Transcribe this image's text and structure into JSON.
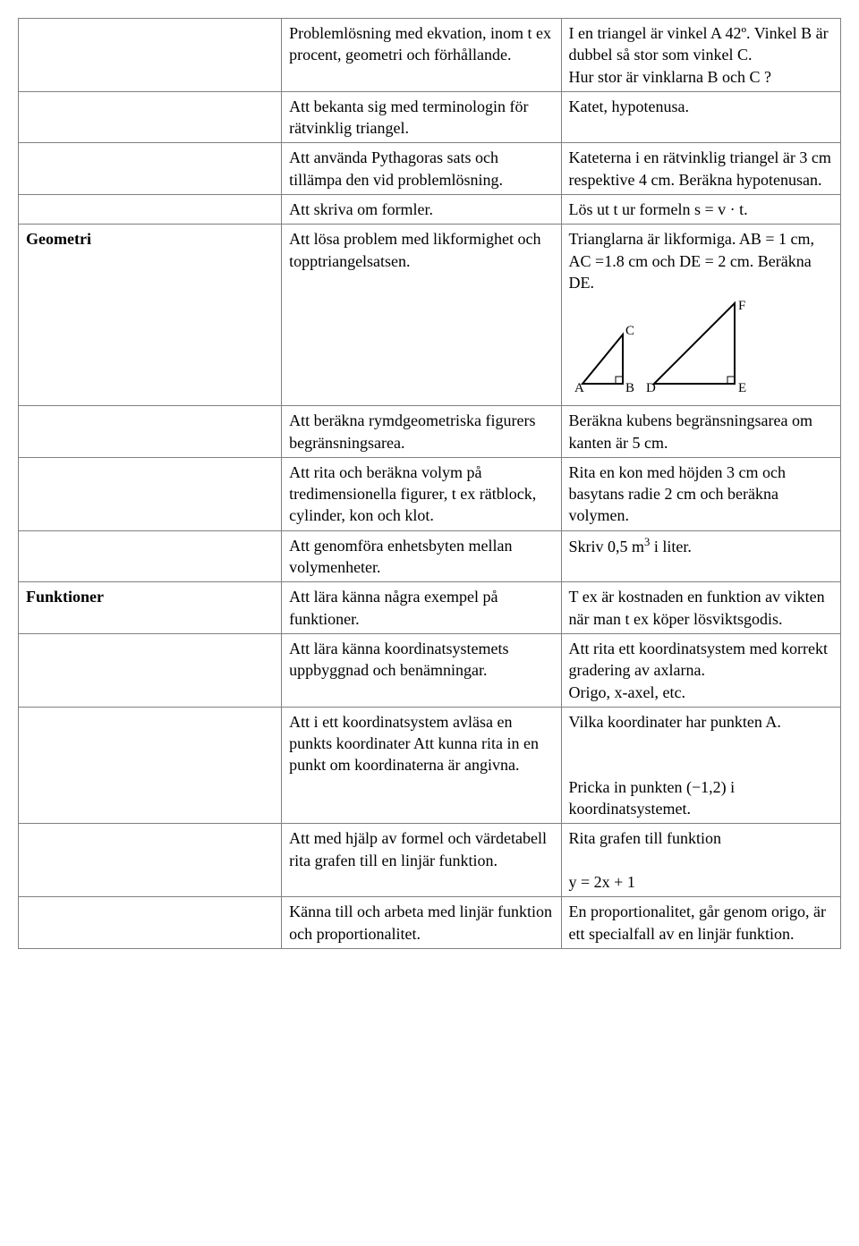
{
  "table": {
    "border_color": "#808080",
    "background_color": "#ffffff",
    "font_family": "Times New Roman",
    "font_size_pt": 13,
    "rows": [
      {
        "c1": "",
        "c2": "Problemlösning med ekvation, inom t ex procent, geometri och förhållande.",
        "c3": "I en triangel är vinkel A 42º. Vinkel B är dubbel så stor som vinkel C.\nHur stor är vinklarna B och C ?"
      },
      {
        "c1": "",
        "c2": "Att bekanta sig med terminologin för rätvinklig triangel.",
        "c3": "Katet, hypotenusa."
      },
      {
        "c1": "",
        "c2": "Att använda Pythagoras sats och tillämpa den vid problemlösning.",
        "c3": "Kateterna i en rätvinklig triangel är 3 cm respektive 4 cm. Beräkna hypotenusan."
      },
      {
        "c1": "",
        "c2": "Att skriva om formler.",
        "c3_prefix": "Lös ut t ur formeln ",
        "c3_formula": "s = v · t",
        "c3_suffix": "."
      },
      {
        "c1": "Geometri",
        "c2": "Att lösa problem med likformighet och topptriangelsatsen.",
        "c3": "Trianglarna är likformiga. AB = 1 cm, AC =1.8 cm och DE = 2 cm. Beräkna DE.",
        "has_diagram": true
      },
      {
        "c1": "",
        "c2": "Att beräkna rymdgeometriska figurers begränsningsarea.",
        "c3": "Beräkna kubens begränsningsarea om kanten är 5 cm."
      },
      {
        "c1": "",
        "c2": "Att rita och beräkna volym på tredimensionella figurer, t ex rätblock, cylinder, kon och klot.",
        "c3": "Rita en kon med höjden 3 cm och basytans radie 2 cm och beräkna volymen."
      },
      {
        "c1": "",
        "c2": "Att genomföra enhetsbyten mellan volymenheter.",
        "c3_prefix": "Skriv 0,5 m",
        "c3_sup": "3",
        "c3_suffix": " i liter."
      },
      {
        "c1": "Funktioner",
        "c2": "Att lära känna några exempel på funktioner.",
        "c3": "T ex är kostnaden en funktion av vikten när man t ex köper lösviktsgodis."
      },
      {
        "c1": "",
        "c2": "Att lära känna koordinatsystemets uppbyggnad och benämningar.",
        "c3": "Att rita ett koordinatsystem med korrekt gradering av axlarna.\nOrigo, x-axel, etc."
      },
      {
        "c1": "",
        "c2": "Att i ett koordinatsystem avläsa en punkts koordinater Att kunna rita in en punkt om koordinaterna är angivna.",
        "c3": "Vilka koordinater har punkten A.\n\nPricka in punkten (−1,2) i koordinatsystemet."
      },
      {
        "c1": "",
        "c2": "Att med hjälp av formel och värdetabell rita grafen till en linjär funktion.",
        "c3_prefix": "Rita grafen till funktion\n",
        "c3_formula": "y = 2x + 1"
      },
      {
        "c1": "",
        "c2": "Känna till och arbeta med linjär funktion och proportionalitet.",
        "c3": "En proportionalitet, går genom origo,  är ett specialfall av en linjär funktion."
      }
    ]
  },
  "diagram": {
    "type": "triangles",
    "stroke": "#000000",
    "stroke_width": 2,
    "label_font_size": 14,
    "triangle1": {
      "A": [
        15,
        95
      ],
      "B": [
        60,
        95
      ],
      "C": [
        60,
        40
      ],
      "labels": {
        "A": "A",
        "B": "B",
        "C": "C"
      }
    },
    "triangle2": {
      "D": [
        95,
        95
      ],
      "E": [
        185,
        95
      ],
      "F": [
        185,
        5
      ],
      "labels": {
        "D": "D",
        "E": "E",
        "F": "F"
      }
    }
  }
}
